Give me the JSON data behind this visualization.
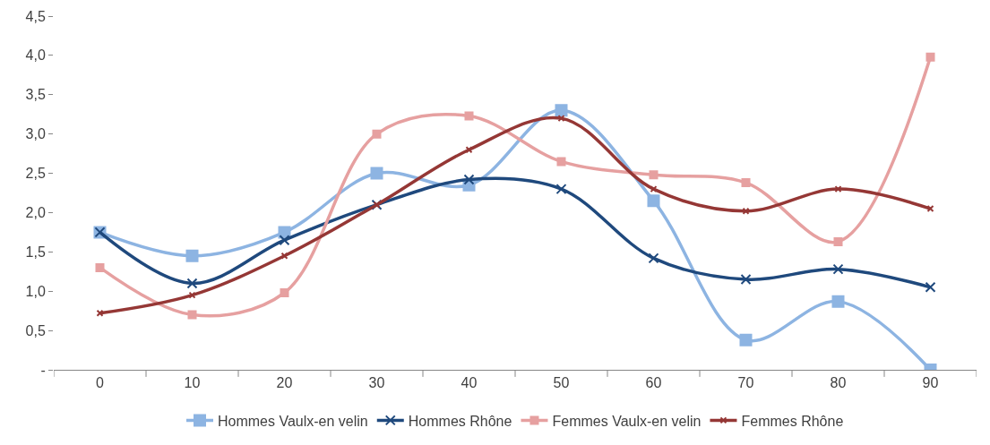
{
  "chart_data": {
    "type": "line",
    "categories": [
      "0",
      "10",
      "20",
      "30",
      "40",
      "50",
      "60",
      "70",
      "80",
      "90"
    ],
    "series": [
      {
        "name": "Hommes Vaulx-en velin",
        "color": "#8db4e2",
        "marker": "square",
        "values": [
          1.75,
          1.45,
          1.75,
          2.5,
          2.35,
          3.3,
          2.15,
          0.38,
          0.87,
          0.0
        ]
      },
      {
        "name": "Hommes Rhône",
        "color": "#1f497d",
        "marker": "cross",
        "values": [
          1.75,
          1.1,
          1.65,
          2.1,
          2.42,
          2.3,
          1.42,
          1.15,
          1.28,
          1.05
        ]
      },
      {
        "name": "Femmes Vaulx-en velin",
        "color": "#e6a0a0",
        "marker": "square",
        "values": [
          1.3,
          0.7,
          0.98,
          3.0,
          3.23,
          2.65,
          2.48,
          2.38,
          1.63,
          3.98
        ]
      },
      {
        "name": "Femmes Rhône",
        "color": "#953735",
        "marker": "cross",
        "values": [
          0.72,
          0.95,
          1.45,
          2.1,
          2.8,
          3.2,
          2.3,
          2.02,
          2.3,
          2.05
        ]
      }
    ],
    "ylim": [
      0,
      4.5
    ],
    "yticks": [
      {
        "value": 0,
        "label": "-"
      },
      {
        "value": 0.5,
        "label": "0,5"
      },
      {
        "value": 1.0,
        "label": "1,0"
      },
      {
        "value": 1.5,
        "label": "1,5"
      },
      {
        "value": 2.0,
        "label": "2,0"
      },
      {
        "value": 2.5,
        "label": "2,5"
      },
      {
        "value": 3.0,
        "label": "3,0"
      },
      {
        "value": 3.5,
        "label": "3,5"
      },
      {
        "value": 4.0,
        "label": "4,0"
      },
      {
        "value": 4.5,
        "label": "4,5"
      }
    ],
    "grid": false,
    "legend": "bottom",
    "line_style": "solid"
  }
}
